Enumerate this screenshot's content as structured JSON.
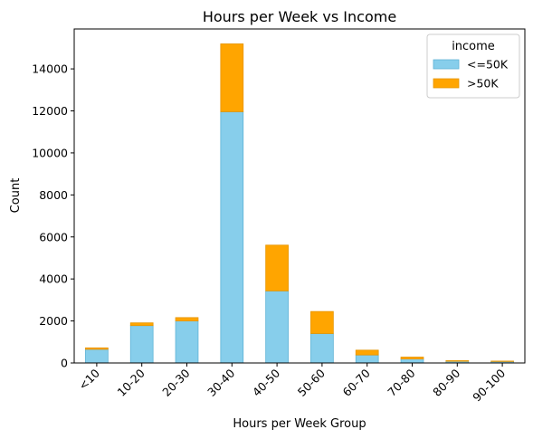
{
  "chart_data": {
    "type": "bar",
    "stacked": true,
    "title": "Hours per Week vs Income",
    "xlabel": "Hours per Week Group",
    "ylabel": "Count",
    "categories": [
      "<10",
      "10-20",
      "20-30",
      "30-40",
      "40-50",
      "50-60",
      "60-70",
      "70-80",
      "80-90",
      "90-100"
    ],
    "series": [
      {
        "name": "<=50K",
        "color": "#87CEEB",
        "values": [
          650,
          1780,
          2000,
          11960,
          3430,
          1400,
          380,
          190,
          80,
          70
        ]
      },
      {
        "name": ">50K",
        "color": "#FFA500",
        "values": [
          70,
          130,
          160,
          3230,
          2180,
          1050,
          230,
          90,
          30,
          20
        ]
      }
    ],
    "ylim": [
      0,
      15900
    ],
    "yticks": [
      0,
      2000,
      4000,
      6000,
      8000,
      10000,
      12000,
      14000
    ],
    "grid": false,
    "legend": {
      "title": "income",
      "placement": "top-right"
    }
  }
}
